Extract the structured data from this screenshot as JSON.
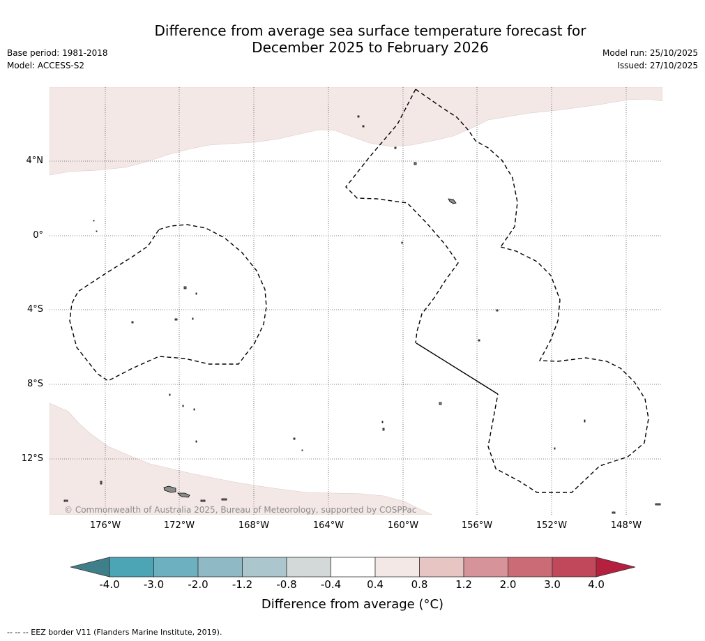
{
  "title": {
    "line1": "Difference from average sea surface temperature forecast for",
    "line2": "December 2025 to February 2026"
  },
  "meta": {
    "base_period": "Base period: 1981-2018",
    "model": "Model: ACCESS-S2",
    "model_run": "Model run: 25/10/2025",
    "issued": "Issued: 27/10/2025"
  },
  "map": {
    "lat_labels": [
      "4°N",
      "0°",
      "4°S",
      "8°S",
      "12°S"
    ],
    "lon_labels": [
      "176°W",
      "172°W",
      "168°W",
      "164°W",
      "160°W",
      "156°W",
      "152°W",
      "148°W"
    ],
    "copyright": "© Commonwealth of Australia 2025, Bureau of Meteorology, supported by COSPPac",
    "anomaly_category_shown": "0.4 to 0.8",
    "colors": {
      "shaded_anomaly": "#f4e8e7",
      "land": "#8c8c8c",
      "eez_border": "#000000",
      "gridline": "#555555"
    }
  },
  "colorbar": {
    "ticks": [
      "-4.0",
      "-3.0",
      "-2.0",
      "-1.2",
      "-0.8",
      "-0.4",
      "0.4",
      "0.8",
      "1.2",
      "2.0",
      "3.0",
      "4.0"
    ],
    "colors": [
      "#3e7f89",
      "#4ba5b5",
      "#6db0bf",
      "#8fb9c4",
      "#abc6cc",
      "#d3d8d9",
      "#ffffff",
      "#f4e8e7",
      "#e6c5c2",
      "#d6939a",
      "#cb6b76",
      "#c0485a",
      "#b5203e"
    ],
    "label": "Difference from average (°C)"
  },
  "footnote": "--  --  -- EEZ border V11 (Flanders Marine Institute, 2019)."
}
